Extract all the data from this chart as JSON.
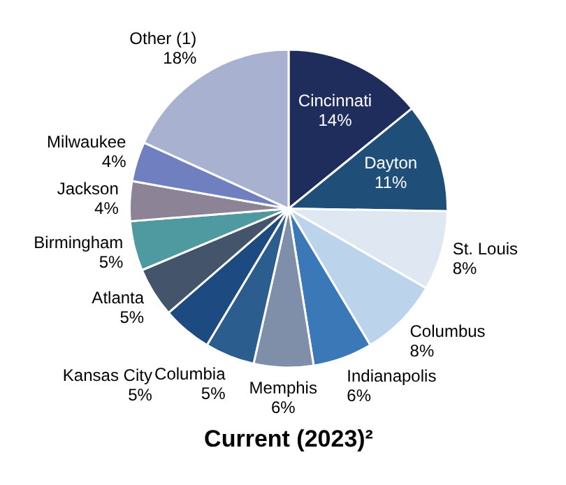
{
  "chart_data": {
    "type": "pie",
    "title": "Current (2023)²",
    "categories": [
      "Cincinnati",
      "Dayton",
      "St. Louis",
      "Columbus",
      "Indianapolis",
      "Memphis",
      "Columbia",
      "Kansas City",
      "Atlanta",
      "Birmingham",
      "Jackson",
      "Milwaukee",
      "Other (1)"
    ],
    "values": [
      14,
      11,
      8,
      8,
      6,
      6,
      5,
      5,
      5,
      5,
      4,
      4,
      18
    ],
    "value_labels": [
      "14%",
      "11%",
      "8%",
      "8%",
      "6%",
      "6%",
      "5%",
      "5%",
      "5%",
      "5%",
      "4%",
      "4%",
      "18%"
    ],
    "colors": [
      "#1f2d5c",
      "#1f4e79",
      "#dfe7f3",
      "#bcd3ec",
      "#3a78b8",
      "#7f8fa9",
      "#2c5d8f",
      "#1d4a80",
      "#44546a",
      "#4e9aa0",
      "#8c8496",
      "#6f7fbf",
      "#a9b1d0"
    ],
    "legend": false
  }
}
